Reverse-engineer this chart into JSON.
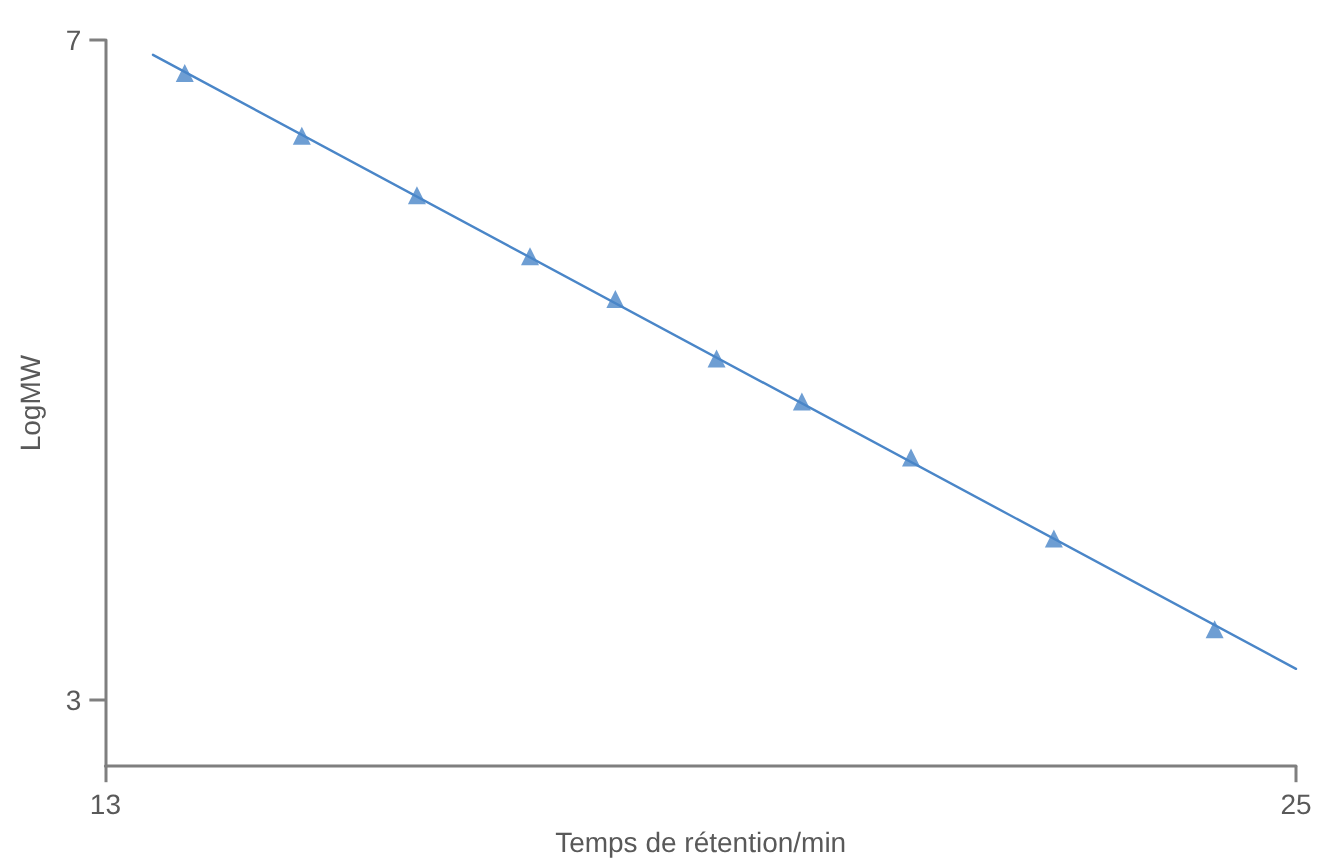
{
  "chart_data": {
    "type": "scatter",
    "xlabel": "Temps de rétention/min",
    "ylabel": "LogMW",
    "xlim": [
      13,
      25
    ],
    "xticks": [
      13,
      25
    ],
    "ylim": [
      2.6,
      7
    ],
    "yticks": [
      3,
      7
    ],
    "grid": false,
    "marker": "triangle",
    "series": [
      {
        "color": "#4a86c8",
        "x": [
          13.8,
          14.98,
          16.14,
          17.28,
          18.14,
          19.16,
          20.02,
          21.12,
          22.56,
          24.18
        ],
        "values": [
          6.8,
          6.42,
          6.06,
          5.69,
          5.43,
          5.07,
          4.81,
          4.47,
          3.98,
          3.43
        ]
      },
      {
        "type": "line",
        "color": "#4a86c8",
        "marker": "none",
        "line_style": "solid",
        "x": [
          13.48,
          25
        ],
        "values": [
          6.91,
          3.19
        ]
      }
    ]
  }
}
